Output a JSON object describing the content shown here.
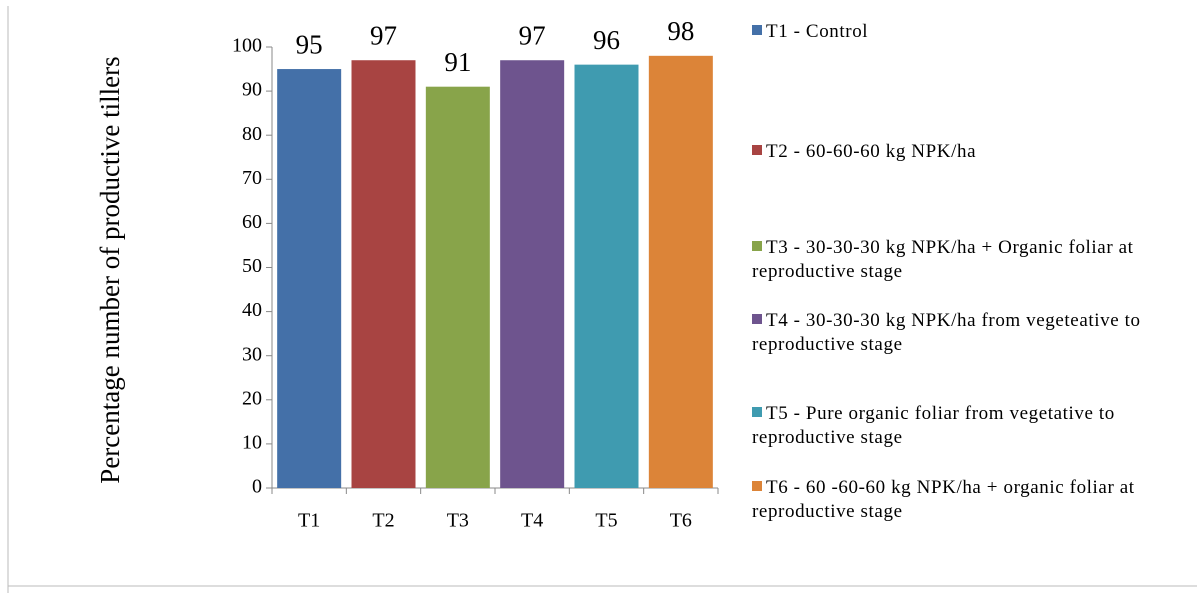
{
  "chart_data": {
    "type": "bar",
    "y_label": "Percentage number of productive tillers",
    "categories": [
      "T1",
      "T2",
      "T3",
      "T4",
      "T5",
      "T6"
    ],
    "values": [
      95,
      97,
      91,
      97,
      96,
      98
    ],
    "colors": [
      "#4470a8",
      "#a84442",
      "#88a44a",
      "#6e548e",
      "#3f9bb0",
      "#dc8438"
    ],
    "legend": [
      "T1 - Control",
      "T2 - 60-60-60 kg NPK/ha",
      "T3 - 30-30-30 kg NPK/ha + Organic foliar at reproductive stage",
      "T4 - 30-30-30 kg NPK/ha from vegeteative to reproductive stage",
      "T5 - Pure organic foliar from vegetative to reproductive stage",
      "T6 - 60 -60-60 kg NPK/ha + organic foliar at reproductive stage"
    ],
    "ylim": [
      0,
      100
    ],
    "yticks": [
      0,
      10,
      20,
      30,
      40,
      50,
      60,
      70,
      80,
      90,
      100
    ]
  }
}
